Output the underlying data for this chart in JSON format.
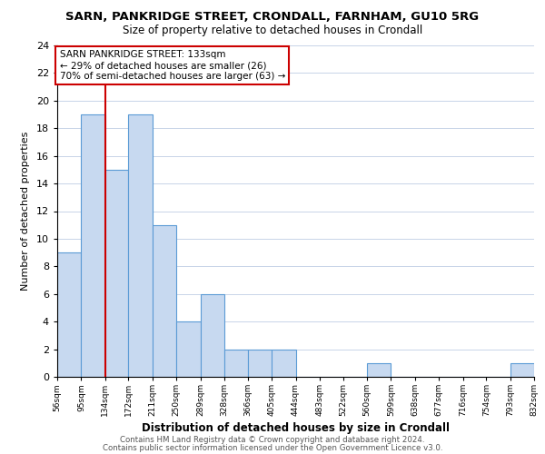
{
  "title": "SARN, PANKRIDGE STREET, CRONDALL, FARNHAM, GU10 5RG",
  "subtitle": "Size of property relative to detached houses in Crondall",
  "xlabel": "Distribution of detached houses by size in Crondall",
  "ylabel": "Number of detached properties",
  "bar_edges": [
    56,
    95,
    134,
    172,
    211,
    250,
    289,
    328,
    366,
    405,
    444,
    483,
    522,
    560,
    599,
    638,
    677,
    716,
    754,
    793,
    832
  ],
  "bar_heights": [
    9,
    19,
    15,
    19,
    11,
    4,
    6,
    2,
    2,
    2,
    0,
    0,
    0,
    1,
    0,
    0,
    0,
    0,
    0,
    1
  ],
  "tick_labels": [
    "56sqm",
    "95sqm",
    "134sqm",
    "172sqm",
    "211sqm",
    "250sqm",
    "289sqm",
    "328sqm",
    "366sqm",
    "405sqm",
    "444sqm",
    "483sqm",
    "522sqm",
    "560sqm",
    "599sqm",
    "638sqm",
    "677sqm",
    "716sqm",
    "754sqm",
    "793sqm",
    "832sqm"
  ],
  "bar_color": "#c7d9f0",
  "bar_edge_color": "#5b9bd5",
  "vline_x": 134,
  "vline_color": "#cc0000",
  "ylim": [
    0,
    24
  ],
  "yticks": [
    0,
    2,
    4,
    6,
    8,
    10,
    12,
    14,
    16,
    18,
    20,
    22,
    24
  ],
  "annotation_line1": "SARN PANKRIDGE STREET: 133sqm",
  "annotation_line2": "← 29% of detached houses are smaller (26)",
  "annotation_line3": "70% of semi-detached houses are larger (63) →",
  "annotation_box_color": "#ffffff",
  "annotation_box_edge": "#cc0000",
  "footer1": "Contains HM Land Registry data © Crown copyright and database right 2024.",
  "footer2": "Contains public sector information licensed under the Open Government Licence v3.0.",
  "background_color": "#ffffff",
  "grid_color": "#c8d4e8"
}
